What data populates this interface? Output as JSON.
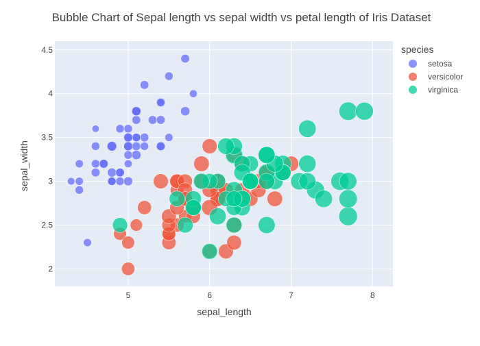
{
  "chart_data": {
    "type": "scatter",
    "title": "Bubble Chart of Sepal length vs sepal width vs petal length of Iris Dataset",
    "xlabel": "sepal_length",
    "ylabel": "sepal_width",
    "size_variable": "petal_length",
    "xlim": [
      4.1,
      8.25
    ],
    "ylim": [
      1.8,
      4.6
    ],
    "x_ticks": [
      5,
      6,
      7,
      8
    ],
    "y_ticks": [
      2,
      2.5,
      3,
      3.5,
      4,
      4.5
    ],
    "grid": true,
    "legend": {
      "title": "species",
      "position": "top-right"
    },
    "series": [
      {
        "name": "setosa",
        "color": "#636efa",
        "points": [
          [
            5.1,
            3.5,
            1.4
          ],
          [
            4.9,
            3.0,
            1.4
          ],
          [
            4.7,
            3.2,
            1.3
          ],
          [
            4.6,
            3.1,
            1.5
          ],
          [
            5.0,
            3.6,
            1.4
          ],
          [
            5.4,
            3.9,
            1.7
          ],
          [
            4.6,
            3.4,
            1.4
          ],
          [
            5.0,
            3.4,
            1.5
          ],
          [
            4.4,
            2.9,
            1.4
          ],
          [
            4.9,
            3.1,
            1.5
          ],
          [
            5.4,
            3.7,
            1.5
          ],
          [
            4.8,
            3.4,
            1.6
          ],
          [
            4.8,
            3.0,
            1.4
          ],
          [
            4.3,
            3.0,
            1.1
          ],
          [
            5.8,
            4.0,
            1.2
          ],
          [
            5.7,
            4.4,
            1.5
          ],
          [
            5.4,
            3.9,
            1.3
          ],
          [
            5.1,
            3.5,
            1.4
          ],
          [
            5.7,
            3.8,
            1.7
          ],
          [
            5.1,
            3.8,
            1.5
          ],
          [
            5.4,
            3.4,
            1.7
          ],
          [
            5.1,
            3.7,
            1.5
          ],
          [
            4.6,
            3.6,
            1.0
          ],
          [
            5.1,
            3.3,
            1.7
          ],
          [
            4.8,
            3.4,
            1.9
          ],
          [
            5.0,
            3.0,
            1.6
          ],
          [
            5.0,
            3.4,
            1.6
          ],
          [
            5.2,
            3.5,
            1.5
          ],
          [
            5.2,
            3.4,
            1.4
          ],
          [
            4.7,
            3.2,
            1.6
          ],
          [
            4.8,
            3.1,
            1.6
          ],
          [
            5.4,
            3.4,
            1.5
          ],
          [
            5.2,
            4.1,
            1.5
          ],
          [
            5.5,
            4.2,
            1.4
          ],
          [
            4.9,
            3.1,
            1.5
          ],
          [
            5.0,
            3.2,
            1.2
          ],
          [
            5.5,
            3.5,
            1.3
          ],
          [
            4.9,
            3.6,
            1.4
          ],
          [
            4.4,
            3.0,
            1.3
          ],
          [
            5.1,
            3.4,
            1.5
          ],
          [
            5.0,
            3.5,
            1.3
          ],
          [
            4.5,
            2.3,
            1.3
          ],
          [
            4.4,
            3.2,
            1.3
          ],
          [
            5.0,
            3.5,
            1.6
          ],
          [
            5.1,
            3.8,
            1.9
          ],
          [
            4.8,
            3.0,
            1.4
          ],
          [
            5.1,
            3.8,
            1.6
          ],
          [
            4.6,
            3.2,
            1.4
          ],
          [
            5.3,
            3.7,
            1.5
          ],
          [
            5.0,
            3.3,
            1.4
          ]
        ]
      },
      {
        "name": "versicolor",
        "color": "#ef553b",
        "points": [
          [
            7.0,
            3.2,
            4.7
          ],
          [
            6.4,
            3.2,
            4.5
          ],
          [
            6.9,
            3.1,
            4.9
          ],
          [
            5.5,
            2.3,
            4.0
          ],
          [
            6.5,
            2.8,
            4.6
          ],
          [
            5.7,
            2.8,
            4.5
          ],
          [
            6.3,
            3.3,
            4.7
          ],
          [
            4.9,
            2.4,
            3.3
          ],
          [
            6.6,
            2.9,
            4.6
          ],
          [
            5.2,
            2.7,
            3.9
          ],
          [
            5.0,
            2.0,
            3.5
          ],
          [
            5.9,
            3.0,
            4.2
          ],
          [
            6.0,
            2.2,
            4.0
          ],
          [
            6.1,
            2.9,
            4.7
          ],
          [
            5.6,
            2.9,
            3.6
          ],
          [
            6.7,
            3.1,
            4.4
          ],
          [
            5.6,
            3.0,
            4.5
          ],
          [
            5.8,
            2.7,
            4.1
          ],
          [
            6.2,
            2.2,
            4.5
          ],
          [
            5.6,
            2.5,
            3.9
          ],
          [
            5.9,
            3.2,
            4.8
          ],
          [
            6.1,
            2.8,
            4.0
          ],
          [
            6.3,
            2.5,
            4.9
          ],
          [
            6.1,
            2.8,
            4.7
          ],
          [
            6.4,
            2.9,
            4.3
          ],
          [
            6.6,
            3.0,
            4.4
          ],
          [
            6.8,
            2.8,
            4.8
          ],
          [
            6.7,
            3.0,
            5.0
          ],
          [
            6.0,
            2.9,
            4.5
          ],
          [
            5.7,
            2.6,
            3.5
          ],
          [
            5.5,
            2.4,
            3.8
          ],
          [
            5.5,
            2.4,
            3.7
          ],
          [
            5.8,
            2.7,
            3.9
          ],
          [
            6.0,
            2.7,
            5.1
          ],
          [
            5.4,
            3.0,
            4.5
          ],
          [
            6.0,
            3.4,
            4.5
          ],
          [
            6.7,
            3.1,
            4.7
          ],
          [
            6.3,
            2.3,
            4.4
          ],
          [
            5.6,
            3.0,
            4.1
          ],
          [
            5.5,
            2.5,
            4.0
          ],
          [
            5.5,
            2.6,
            4.4
          ],
          [
            6.1,
            3.0,
            4.6
          ],
          [
            5.8,
            2.6,
            4.0
          ],
          [
            5.0,
            2.3,
            3.3
          ],
          [
            5.6,
            2.7,
            4.2
          ],
          [
            5.7,
            3.0,
            4.2
          ],
          [
            5.7,
            2.9,
            4.2
          ],
          [
            6.2,
            2.9,
            4.3
          ],
          [
            5.1,
            2.5,
            3.0
          ],
          [
            5.7,
            2.8,
            4.1
          ]
        ]
      },
      {
        "name": "virginica",
        "color": "#00cc96",
        "points": [
          [
            6.3,
            3.3,
            6.0
          ],
          [
            5.8,
            2.7,
            5.1
          ],
          [
            7.1,
            3.0,
            5.9
          ],
          [
            6.3,
            2.9,
            5.6
          ],
          [
            6.5,
            3.0,
            5.8
          ],
          [
            7.6,
            3.0,
            6.6
          ],
          [
            4.9,
            2.5,
            4.5
          ],
          [
            7.3,
            2.9,
            6.3
          ],
          [
            6.7,
            2.5,
            5.8
          ],
          [
            7.2,
            3.6,
            6.1
          ],
          [
            6.5,
            3.2,
            5.1
          ],
          [
            6.4,
            2.7,
            5.3
          ],
          [
            6.8,
            3.0,
            5.5
          ],
          [
            5.7,
            2.5,
            5.0
          ],
          [
            5.8,
            2.8,
            5.1
          ],
          [
            6.4,
            3.2,
            5.3
          ],
          [
            6.5,
            3.0,
            5.5
          ],
          [
            7.7,
            3.8,
            6.7
          ],
          [
            7.7,
            2.6,
            6.9
          ],
          [
            6.0,
            2.2,
            5.0
          ],
          [
            6.9,
            3.2,
            5.7
          ],
          [
            5.6,
            2.8,
            4.9
          ],
          [
            7.7,
            2.8,
            6.7
          ],
          [
            6.3,
            2.7,
            4.9
          ],
          [
            6.7,
            3.3,
            5.7
          ],
          [
            7.2,
            3.2,
            6.0
          ],
          [
            6.2,
            2.8,
            4.8
          ],
          [
            6.1,
            3.0,
            4.9
          ],
          [
            6.4,
            2.8,
            5.6
          ],
          [
            7.2,
            3.0,
            5.8
          ],
          [
            7.4,
            2.8,
            6.1
          ],
          [
            7.9,
            3.8,
            6.4
          ],
          [
            6.4,
            2.8,
            5.6
          ],
          [
            6.3,
            2.8,
            5.1
          ],
          [
            6.1,
            2.6,
            5.6
          ],
          [
            7.7,
            3.0,
            6.1
          ],
          [
            6.3,
            3.4,
            5.6
          ],
          [
            6.4,
            3.1,
            5.5
          ],
          [
            6.0,
            3.0,
            4.8
          ],
          [
            6.9,
            3.1,
            5.4
          ],
          [
            6.7,
            3.1,
            5.6
          ],
          [
            6.9,
            3.1,
            5.1
          ],
          [
            5.8,
            2.7,
            5.1
          ],
          [
            6.8,
            3.2,
            5.9
          ],
          [
            6.7,
            3.3,
            5.7
          ],
          [
            6.7,
            3.0,
            5.2
          ],
          [
            6.3,
            2.5,
            5.0
          ],
          [
            6.5,
            3.0,
            5.2
          ],
          [
            6.2,
            3.4,
            5.4
          ],
          [
            5.9,
            3.0,
            5.1
          ]
        ]
      }
    ]
  }
}
